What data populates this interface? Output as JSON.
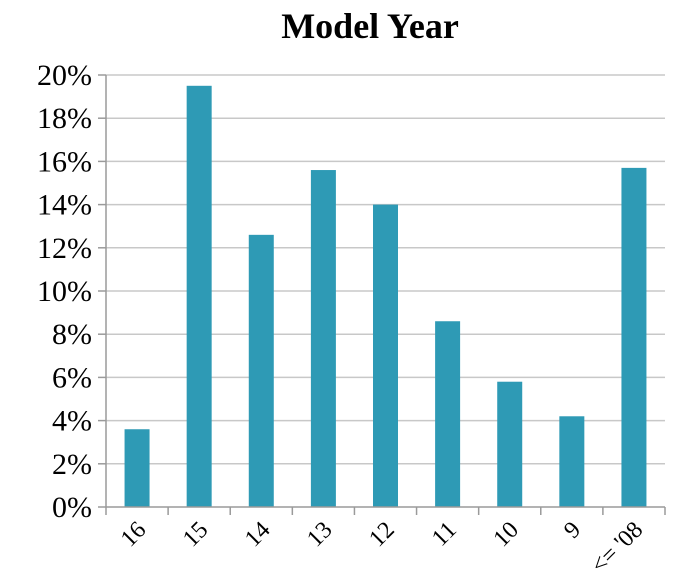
{
  "chart_data": {
    "type": "bar",
    "title": "Model Year",
    "xlabel": "",
    "ylabel": "",
    "categories": [
      "16",
      "15",
      "14",
      "13",
      "12",
      "11",
      "10",
      "9",
      "<= '08"
    ],
    "values": [
      3.6,
      19.5,
      12.6,
      15.6,
      14.0,
      8.6,
      5.8,
      4.2,
      15.7
    ],
    "ylim": [
      0,
      20
    ],
    "yticks": [
      0,
      2,
      4,
      6,
      8,
      10,
      12,
      14,
      16,
      18,
      20
    ],
    "ytick_labels": [
      "0%",
      "2%",
      "4%",
      "6%",
      "8%",
      "10%",
      "12%",
      "14%",
      "16%",
      "18%",
      "20%"
    ],
    "bar_color": "#2e9ab5",
    "grid": true,
    "legend": "none"
  }
}
